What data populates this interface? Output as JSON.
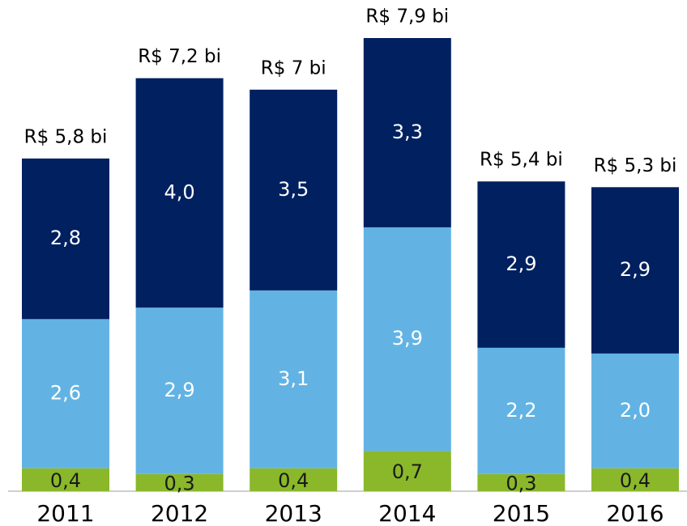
{
  "chart_data": {
    "type": "stacked_bar",
    "categories": [
      "2011",
      "2012",
      "2013",
      "2014",
      "2015",
      "2016"
    ],
    "series": [
      {
        "color": "#8ab82a",
        "values": [
          0.4,
          0.3,
          0.4,
          0.7,
          0.3,
          0.4
        ],
        "value_labels": [
          "0,4",
          "0,3",
          "0,4",
          "0,7",
          "0,3",
          "0,4"
        ]
      },
      {
        "color": "#62b3e4",
        "values": [
          2.6,
          2.9,
          3.1,
          3.9,
          2.2,
          2.0
        ],
        "value_labels": [
          "2,6",
          "2,9",
          "3,1",
          "3,9",
          "2,2",
          "2,0"
        ]
      },
      {
        "color": "#002060",
        "values": [
          2.8,
          4.0,
          3.5,
          3.3,
          2.9,
          2.9
        ],
        "value_labels": [
          "2,8",
          "4,0",
          "3,5",
          "3,3",
          "2,9",
          "2,9"
        ]
      }
    ],
    "total_labels": [
      "R$ 5,8 bi",
      "R$ 7,2 bi",
      "R$ 7 bi",
      "R$ 7,9 bi",
      "R$ 5,4 bi",
      "R$ 5,3 bi"
    ]
  }
}
